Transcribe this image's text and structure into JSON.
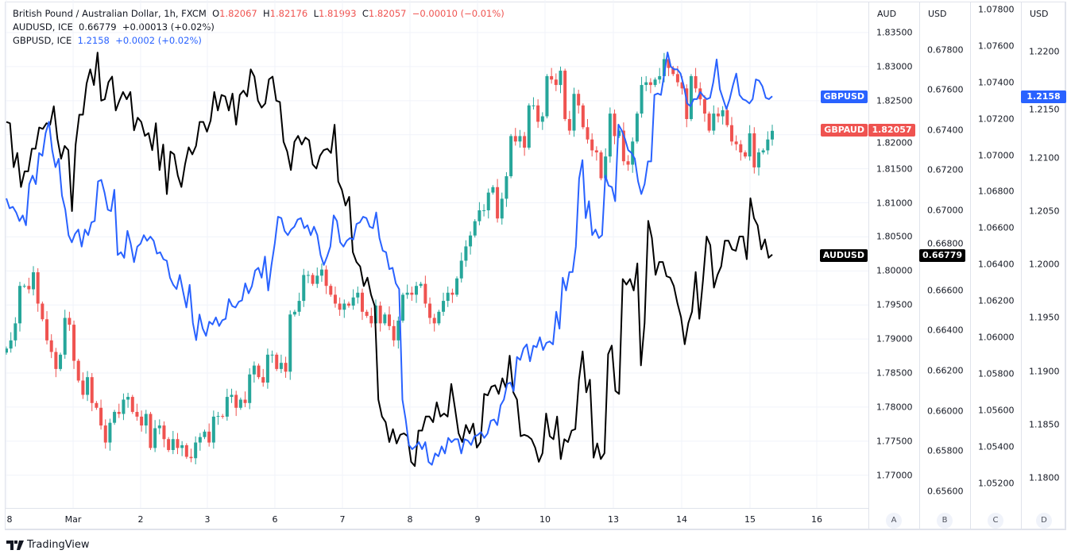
{
  "legend": {
    "main": {
      "title": "British Pound / Australian Dollar, 1h, FXCM",
      "o_label": "O",
      "o": "1.82067",
      "h_label": "H",
      "h": "1.82176",
      "l_label": "L",
      "l": "1.81993",
      "c_label": "C",
      "c": "1.82057",
      "change": "−0.00010 (−0.01%)"
    },
    "audusd": {
      "title": "AUDUSD, ICE",
      "value": "0.66779",
      "change": "+0.00013 (+0.02%)"
    },
    "gbpusd": {
      "title": "GBPUSD, ICE",
      "value": "1.2158",
      "change": "+0.0002 (+0.02%)"
    }
  },
  "tags": {
    "gbpusd": {
      "name": "GBPUSD",
      "price": "1.2158"
    },
    "gbpaud": {
      "name": "GBPAUD",
      "price": "1.82057"
    },
    "audusd": {
      "name": "AUDUSD",
      "price": "0.66779"
    }
  },
  "axis_letters": [
    "A",
    "B",
    "C",
    "D"
  ],
  "brand": "TradingView",
  "colors": {
    "up": "#26a69a",
    "down": "#ef5350",
    "gbpusd": "#2962ff",
    "audusd": "#000000",
    "grid": "#f0f3fa"
  },
  "chart_data": {
    "type": "line",
    "grid": true,
    "x_ticks": [
      "8",
      "Mar",
      "2",
      "3",
      "6",
      "7",
      "8",
      "9",
      "10",
      "13",
      "14",
      "15",
      "16"
    ],
    "axes": [
      {
        "id": "A",
        "unit": "AUD",
        "range": [
          1.76519,
          1.83978
        ],
        "ticks": [
          "1.83500",
          "1.83000",
          "1.82500",
          "1.82000",
          "1.81500",
          "1.81000",
          "1.80500",
          "1.80000",
          "1.79500",
          "1.79000",
          "1.78500",
          "1.78000",
          "1.77500",
          "1.77000"
        ]
      },
      {
        "id": "B",
        "unit": "USD",
        "range": [
          0.65515,
          0.68049
        ],
        "ticks": [
          "0.67800",
          "0.67600",
          "0.67400",
          "0.67200",
          "0.67000",
          "0.66800",
          "0.66600",
          "0.66400",
          "0.66200",
          "0.66000",
          "0.65800",
          "0.65600"
        ]
      },
      {
        "id": "C",
        "unit": "",
        "range": [
          1.05064,
          1.07852
        ],
        "ticks": [
          "1.07800",
          "1.07600",
          "1.07400",
          "1.07200",
          "1.07000",
          "1.06800",
          "1.06600",
          "1.06400",
          "1.06200",
          "1.06000",
          "1.05800",
          "1.05600",
          "1.05400",
          "1.05200"
        ]
      },
      {
        "id": "D",
        "unit": "USD",
        "range": [
          1.17715,
          1.22484
        ],
        "ticks": [
          "1.2200",
          "1.2150",
          "1.2100",
          "1.2050",
          "1.2000",
          "1.1950",
          "1.1900",
          "1.1850",
          "1.1800"
        ]
      }
    ],
    "series": [
      {
        "name": "GBPAUD",
        "type": "candlestick-closes",
        "axis": "A",
        "values": [
          1.7886,
          1.7898,
          1.7923,
          1.7978,
          1.7978,
          1.7973,
          1.7998,
          1.7952,
          1.7929,
          1.7898,
          1.7881,
          1.7856,
          1.7877,
          1.7931,
          1.7921,
          1.7868,
          1.7839,
          1.7818,
          1.7844,
          1.7806,
          1.7799,
          1.7773,
          1.7748,
          1.7777,
          1.7793,
          1.779,
          1.7811,
          1.7815,
          1.7793,
          1.7786,
          1.7773,
          1.779,
          1.774,
          1.7769,
          1.7773,
          1.7753,
          1.7737,
          1.7753,
          1.774,
          1.7744,
          1.7727,
          1.7725,
          1.7748,
          1.7756,
          1.7764,
          1.7748,
          1.7786,
          1.7787,
          1.7786,
          1.7815,
          1.7818,
          1.7799,
          1.7811,
          1.7806,
          1.7848,
          1.7861,
          1.7844,
          1.7836,
          1.7877,
          1.7877,
          1.7856,
          1.7865,
          1.7852,
          1.7936,
          1.794,
          1.7956,
          1.7994,
          1.7994,
          1.7981,
          1.7993,
          1.8002,
          1.7978,
          1.7965,
          1.7952,
          1.7943,
          1.7952,
          1.7949,
          1.7961,
          1.7968,
          1.794,
          1.7934,
          1.7923,
          1.7949,
          1.7923,
          1.7936,
          1.7919,
          1.7898,
          1.7927,
          1.7965,
          1.7968,
          1.7965,
          1.7978,
          1.7981,
          1.7952,
          1.7931,
          1.7923,
          1.794,
          1.7956,
          1.7968,
          1.7965,
          1.7989,
          1.8015,
          1.8036,
          1.8052,
          1.8073,
          1.8089,
          1.8089,
          1.8115,
          1.8123,
          1.8077,
          1.8106,
          1.8139,
          1.8198,
          1.819,
          1.8198,
          1.8181,
          1.8243,
          1.8243,
          1.8219,
          1.8227,
          1.8286,
          1.8281,
          1.8273,
          1.8294,
          1.8223,
          1.8206,
          1.826,
          1.8243,
          1.8211,
          1.8193,
          1.8177,
          1.8174,
          1.8136,
          1.8168,
          1.8231,
          1.8198,
          1.8206,
          1.8161,
          1.8156,
          1.819,
          1.8231,
          1.8273,
          1.8277,
          1.8273,
          1.8281,
          1.8286,
          1.8311,
          1.8298,
          1.8289,
          1.8277,
          1.8268,
          1.8223,
          1.8286,
          1.8268,
          1.8252,
          1.8231,
          1.8206,
          1.8231,
          1.8227,
          1.8236,
          1.8214,
          1.819,
          1.8186,
          1.8174,
          1.8168,
          1.8202,
          1.8152,
          1.8174,
          1.8177,
          1.8193,
          1.82057
        ]
      },
      {
        "name": "AUDUSD",
        "type": "line",
        "axis": "B",
        "values": [
          0.67441,
          0.67434,
          0.67215,
          0.67286,
          0.67116,
          0.67194,
          0.67194,
          0.67307,
          0.67307,
          0.67413,
          0.67406,
          0.67434,
          0.67427,
          0.67519,
          0.67356,
          0.67257,
          0.67321,
          0.673,
          0.66996,
          0.67328,
          0.67477,
          0.67477,
          0.67632,
          0.67703,
          0.67625,
          0.67787,
          0.67547,
          0.67554,
          0.67639,
          0.67667,
          0.67498,
          0.67547,
          0.6759,
          0.67554,
          0.6759,
          0.67399,
          0.67462,
          0.67441,
          0.67371,
          0.67385,
          0.673,
          0.67434,
          0.67201,
          0.67328,
          0.67081,
          0.67293,
          0.67279,
          0.67173,
          0.67116,
          0.67229,
          0.67314,
          0.67279,
          0.67321,
          0.67441,
          0.67441,
          0.67392,
          0.67448,
          0.6759,
          0.67498,
          0.67575,
          0.67568,
          0.67498,
          0.67582,
          0.67427,
          0.67575,
          0.67597,
          0.67568,
          0.67703,
          0.67667,
          0.67547,
          0.67512,
          0.67533,
          0.67653,
          0.67667,
          0.67547,
          0.6754,
          0.67342,
          0.67293,
          0.67201,
          0.67342,
          0.67371,
          0.67328,
          0.67363,
          0.67349,
          0.67229,
          0.67208,
          0.67272,
          0.673,
          0.67307,
          0.67286,
          0.67427,
          0.67144,
          0.67102,
          0.67024,
          0.67067,
          0.66791,
          0.66742,
          0.6672,
          0.66622,
          0.66664,
          0.66579,
          0.66523,
          0.66056,
          0.65971,
          0.65943,
          0.65844,
          0.65908,
          0.65837,
          0.6588,
          0.65887,
          0.65873,
          0.65745,
          0.65724,
          0.65901,
          0.65901,
          0.65971,
          0.65971,
          0.65943,
          0.66042,
          0.65971,
          0.65986,
          0.65971,
          0.66134,
          0.66014,
          0.65887,
          0.65844,
          0.65929,
          0.65887,
          0.65936,
          0.65816,
          0.65844,
          0.66084,
          0.66077,
          0.6612,
          0.66127,
          0.66084,
          0.66162,
          0.66113,
          0.66275,
          0.66092,
          0.66056,
          0.65873,
          0.6588,
          0.65873,
          0.65858,
          0.65816,
          0.65745,
          0.65788,
          0.65986,
          0.65873,
          0.65858,
          0.65971,
          0.65759,
          0.65858,
          0.65844,
          0.65901,
          0.65908,
          0.66155,
          0.66296,
          0.66092,
          0.66155,
          0.65766,
          0.65837,
          0.65759,
          0.65788,
          0.66282,
          0.66325,
          0.66099,
          0.66084,
          0.66657,
          0.66629,
          0.66657,
          0.666,
          0.66735,
          0.66226,
          0.66438,
          0.66947,
          0.66862,
          0.66678,
          0.66742,
          0.66742,
          0.66671,
          0.66664,
          0.66622,
          0.66537,
          0.66466,
          0.66332,
          0.66438,
          0.66494,
          0.66692,
          0.66459,
          0.6665,
          0.66869,
          0.66826,
          0.66614,
          0.66678,
          0.6672,
          0.66848,
          0.66848,
          0.66805,
          0.66798,
          0.66869,
          0.66869,
          0.66756,
          0.6706,
          0.66961,
          0.66925,
          0.66805,
          0.66855,
          0.66763,
          0.66779
        ]
      },
      {
        "name": "GBPUSD",
        "type": "line",
        "axis": "D",
        "values": [
          1.20622,
          1.20529,
          1.20542,
          1.20489,
          1.20409,
          1.20462,
          1.20369,
          1.20755,
          1.20835,
          1.20755,
          1.21048,
          1.21021,
          1.21234,
          1.2134,
          1.21074,
          1.20915,
          1.20994,
          1.20648,
          1.20515,
          1.20276,
          1.20209,
          1.20289,
          1.20329,
          1.20169,
          1.20329,
          1.20276,
          1.20396,
          1.20409,
          1.20781,
          1.20795,
          1.20675,
          1.20515,
          1.20502,
          1.20702,
          1.2009,
          1.20116,
          1.20063,
          1.20316,
          1.20196,
          1.20023,
          1.20169,
          1.20196,
          1.20276,
          1.20223,
          1.20263,
          1.20223,
          1.20103,
          1.20116,
          1.2005,
          1.20036,
          1.19877,
          1.1981,
          1.1977,
          1.19903,
          1.19744,
          1.19597,
          1.1981,
          1.19451,
          1.19291,
          1.19531,
          1.19398,
          1.19331,
          1.19464,
          1.19438,
          1.19504,
          1.19424,
          1.19478,
          1.19491,
          1.19677,
          1.19611,
          1.19597,
          1.19651,
          1.19664,
          1.19824,
          1.1973,
          1.19797,
          1.19943,
          1.1997,
          1.19877,
          1.20076,
          1.19757,
          1.19997,
          1.20196,
          1.20449,
          1.20436,
          1.20316,
          1.20276,
          1.20329,
          1.20356,
          1.20422,
          1.20436,
          1.20342,
          1.20369,
          1.20276,
          1.20356,
          1.20276,
          1.2009,
          1.19997,
          1.20076,
          1.20169,
          1.20462,
          1.20409,
          1.20209,
          1.20169,
          1.20223,
          1.20249,
          1.20236,
          1.20382,
          1.20396,
          1.20449,
          1.20436,
          1.20356,
          1.20342,
          1.20489,
          1.20249,
          1.2013,
          1.20116,
          1.19957,
          1.1997,
          1.19824,
          1.1977,
          1.18732,
          1.18546,
          1.18307,
          1.18267,
          1.18293,
          1.18333,
          1.18267,
          1.18333,
          1.18147,
          1.1812,
          1.18227,
          1.182,
          1.18293,
          1.18227,
          1.18373,
          1.18333,
          1.1836,
          1.1836,
          1.18227,
          1.1836,
          1.18347,
          1.18307,
          1.18387,
          1.184,
          1.18427,
          1.18373,
          1.18413,
          1.18533,
          1.18546,
          1.18493,
          1.18679,
          1.18732,
          1.18879,
          1.18892,
          1.18812,
          1.19132,
          1.19105,
          1.19212,
          1.19251,
          1.19092,
          1.19238,
          1.19225,
          1.19318,
          1.19198,
          1.19265,
          1.19278,
          1.19251,
          1.19557,
          1.19398,
          1.19877,
          1.19757,
          1.1993,
          1.1993,
          1.20169,
          1.20808,
          1.20981,
          1.20436,
          1.20595,
          1.20276,
          1.20329,
          1.20249,
          1.20276,
          1.20835,
          1.20742,
          1.20728,
          1.20595,
          1.21314,
          1.2126,
          1.21181,
          1.21074,
          1.21048,
          1.20994,
          1.20781,
          1.20662,
          1.20755,
          1.20968,
          1.20968,
          1.21593,
          1.21606,
          1.21593,
          1.21793,
          1.21992,
          1.21859,
          1.21833,
          1.21833,
          1.21793,
          1.21673,
          1.21513,
          1.21487,
          1.21553,
          1.21553,
          1.2162,
          1.2158,
          1.21553,
          1.21566,
          1.21713,
          1.21926,
          1.21646,
          1.21553,
          1.2146,
          1.21553,
          1.21686,
          1.21793,
          1.21593,
          1.21553,
          1.2154,
          1.21513,
          1.21553,
          1.21739,
          1.21726,
          1.21673,
          1.21566,
          1.21553,
          1.2158
        ]
      }
    ]
  }
}
